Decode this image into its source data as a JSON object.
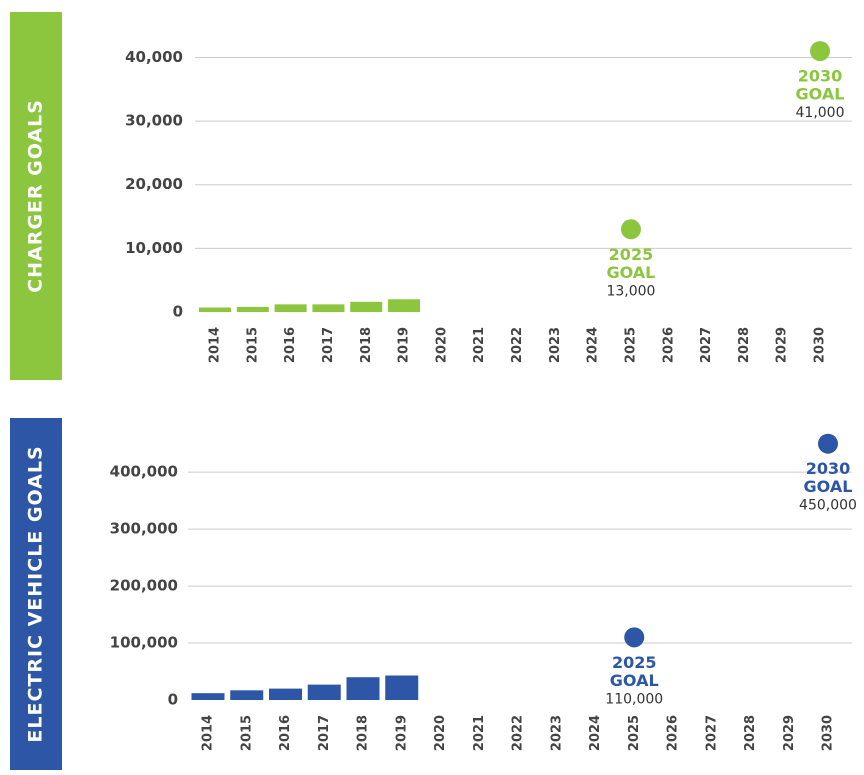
{
  "chart_data": [
    {
      "type": "bar",
      "title": "CHARGER GOALS",
      "color": "#8cc63f",
      "categories": [
        "2014",
        "2015",
        "2016",
        "2017",
        "2018",
        "2019",
        "2020",
        "2021",
        "2022",
        "2023",
        "2024",
        "2025",
        "2026",
        "2027",
        "2028",
        "2029",
        "2030"
      ],
      "values": [
        700,
        800,
        1200,
        1200,
        1600,
        2000,
        null,
        null,
        null,
        null,
        null,
        null,
        null,
        null,
        null,
        null,
        null
      ],
      "ylim": [
        0,
        44000
      ],
      "yticks": [
        0,
        {
          "value": 10000,
          "label": "10,000"
        },
        {
          "value": 20000,
          "label": "20,000"
        },
        {
          "value": 30000,
          "label": "30,000"
        },
        {
          "value": 40000,
          "label": "40,000"
        }
      ],
      "grid": true,
      "goals": [
        {
          "year": "2025",
          "label": "GOAL",
          "value": 13000,
          "value_label": "13,000"
        },
        {
          "year": "2030",
          "label": "GOAL",
          "value": 41000,
          "value_label": "41,000"
        }
      ]
    },
    {
      "type": "bar",
      "title": "ELECTRIC VEHICLE GOALS",
      "color": "#2e56a6",
      "categories": [
        "2014",
        "2015",
        "2016",
        "2017",
        "2018",
        "2019",
        "2020",
        "2021",
        "2022",
        "2023",
        "2024",
        "2025",
        "2026",
        "2027",
        "2028",
        "2029",
        "2030"
      ],
      "values": [
        12000,
        17000,
        20000,
        27000,
        40000,
        43000,
        null,
        null,
        null,
        null,
        null,
        null,
        null,
        null,
        null,
        null,
        null
      ],
      "ylim": [
        0,
        460000
      ],
      "yticks": [
        0,
        {
          "value": 100000,
          "label": "100,000"
        },
        {
          "value": 200000,
          "label": "200,000"
        },
        {
          "value": 300000,
          "label": "300,000"
        },
        {
          "value": 400000,
          "label": "400,000"
        }
      ],
      "grid": true,
      "goals": [
        {
          "year": "2025",
          "label": "GOAL",
          "value": 110000,
          "value_label": "110,000"
        },
        {
          "year": "2030",
          "label": "GOAL",
          "value": 450000,
          "value_label": "450,000"
        }
      ]
    }
  ]
}
